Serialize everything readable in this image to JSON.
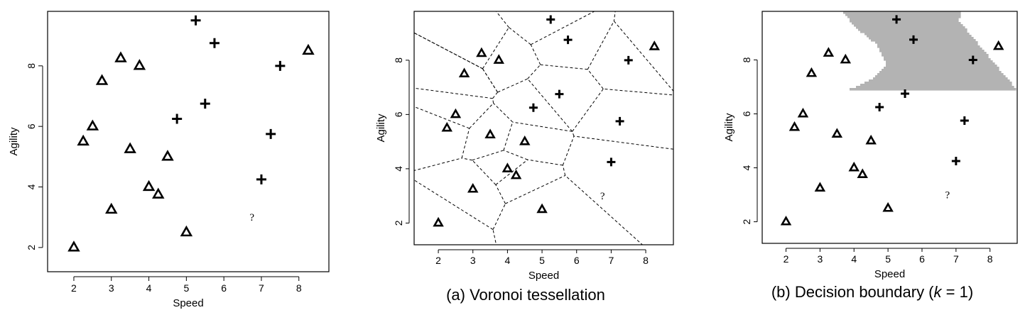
{
  "panels": [
    {
      "id": "scatter",
      "caption": ""
    },
    {
      "id": "voronoi",
      "caption": "(a) Voronoi tessellation"
    },
    {
      "id": "boundary",
      "caption_prefix": "(b) Decision boundary (",
      "caption_var": "k",
      "caption_suffix": " =  1)"
    }
  ],
  "query_label": "?",
  "colors": {
    "marker": "#000000",
    "positive_region": "#b3b3b3",
    "background": "#ffffff"
  },
  "chart_data": [
    {
      "type": "scatter",
      "title": "",
      "xlabel": "Speed",
      "ylabel": "Agility",
      "xlim": [
        1.3,
        8.8
      ],
      "ylim": [
        1.2,
        9.8
      ],
      "xticks": [
        2,
        3,
        4,
        5,
        6,
        7,
        8
      ],
      "yticks": [
        2,
        4,
        6,
        8
      ],
      "grid": false,
      "series": [
        {
          "marker": "triangle",
          "points": [
            [
              2.0,
              2.0
            ],
            [
              2.25,
              5.5
            ],
            [
              2.5,
              6.0
            ],
            [
              2.75,
              7.5
            ],
            [
              3.0,
              3.25
            ],
            [
              3.25,
              8.25
            ],
            [
              3.5,
              5.25
            ],
            [
              3.75,
              8.0
            ],
            [
              4.0,
              4.0
            ],
            [
              4.25,
              3.75
            ],
            [
              4.5,
              5.0
            ],
            [
              5.0,
              2.5
            ],
            [
              8.25,
              8.5
            ]
          ]
        },
        {
          "marker": "plus",
          "points": [
            [
              4.75,
              6.25
            ],
            [
              5.25,
              9.5
            ],
            [
              5.5,
              6.75
            ],
            [
              5.75,
              8.75
            ],
            [
              7.0,
              4.25
            ],
            [
              7.25,
              5.75
            ],
            [
              7.5,
              8.0
            ]
          ]
        }
      ],
      "query_point": [
        6.75,
        3.0
      ]
    },
    {
      "type": "scatter",
      "title": "(a) Voronoi tessellation",
      "xlabel": "Speed",
      "ylabel": "Agility",
      "xlim": [
        1.3,
        8.8
      ],
      "ylim": [
        1.2,
        9.8
      ],
      "xticks": [
        2,
        3,
        4,
        5,
        6,
        7,
        8
      ],
      "yticks": [
        2,
        4,
        6,
        8
      ],
      "grid": false,
      "overlay": "voronoi-tessellation",
      "series": "same-as-scatter",
      "query_point": [
        6.75,
        3.0
      ]
    },
    {
      "type": "scatter",
      "title": "(b) Decision boundary (k = 1)",
      "xlabel": "Speed",
      "ylabel": "Agility",
      "xlim": [
        1.3,
        8.8
      ],
      "ylim": [
        1.2,
        9.8
      ],
      "xticks": [
        2,
        3,
        4,
        5,
        6,
        7,
        8
      ],
      "yticks": [
        2,
        4,
        6,
        8
      ],
      "grid": false,
      "overlay": "1-nn-decision-region",
      "series": "same-as-scatter",
      "query_point": [
        6.75,
        3.0
      ]
    }
  ]
}
